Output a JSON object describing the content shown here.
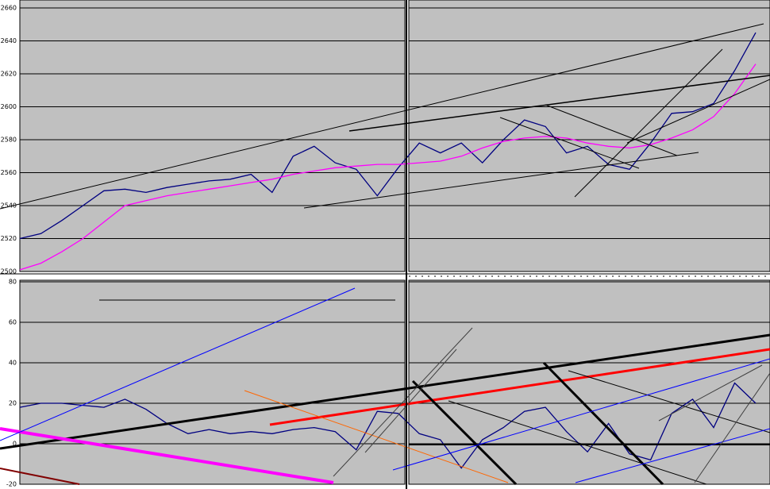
{
  "chart_data": [
    {
      "type": "line",
      "ylim": [
        2500,
        2660
      ],
      "yticks": [
        2500,
        2520,
        2540,
        2560,
        2580,
        2600,
        2620,
        2640,
        2660
      ],
      "grid": true,
      "background": "#c0c0c0",
      "series": [
        {
          "color": "#000080",
          "values": [
            2520,
            2523,
            2531,
            2540,
            2549,
            2550,
            2548,
            2551,
            2553,
            2555,
            2556,
            2559,
            2548,
            2570,
            2576,
            2566,
            2562,
            2546,
            2563,
            2578,
            2572,
            2578,
            2566,
            2580,
            2592,
            2588,
            2572,
            2576,
            2565,
            2562,
            2578,
            2596,
            2597,
            2602,
            2622,
            2645
          ]
        },
        {
          "color": "#ff00ff",
          "values": [
            2501,
            2505,
            2512,
            2520,
            2530,
            2540,
            2543,
            2546,
            2548,
            2550,
            2552,
            2554,
            2556,
            2559,
            2561,
            2563,
            2564,
            2565,
            2565,
            2566,
            2567,
            2570,
            2575,
            2579,
            2581,
            2582,
            2581,
            2578,
            2576,
            2575,
            2577,
            2581,
            2586,
            2594,
            2608,
            2626
          ]
        }
      ]
    },
    {
      "type": "line",
      "ylim": [
        -20,
        80
      ],
      "yticks": [
        -20,
        0,
        20,
        40,
        60,
        80
      ],
      "grid": true,
      "background": "#c0c0c0",
      "series": [
        {
          "color": "#000080",
          "values": [
            18,
            20,
            20,
            19,
            18,
            22,
            17,
            10,
            5,
            7,
            5,
            6,
            5,
            7,
            8,
            6,
            -3,
            16,
            15,
            5,
            2,
            -12,
            2,
            8,
            16,
            18,
            6,
            -4,
            10,
            -5,
            -8,
            15,
            22,
            8,
            30,
            20
          ]
        }
      ]
    }
  ]
}
